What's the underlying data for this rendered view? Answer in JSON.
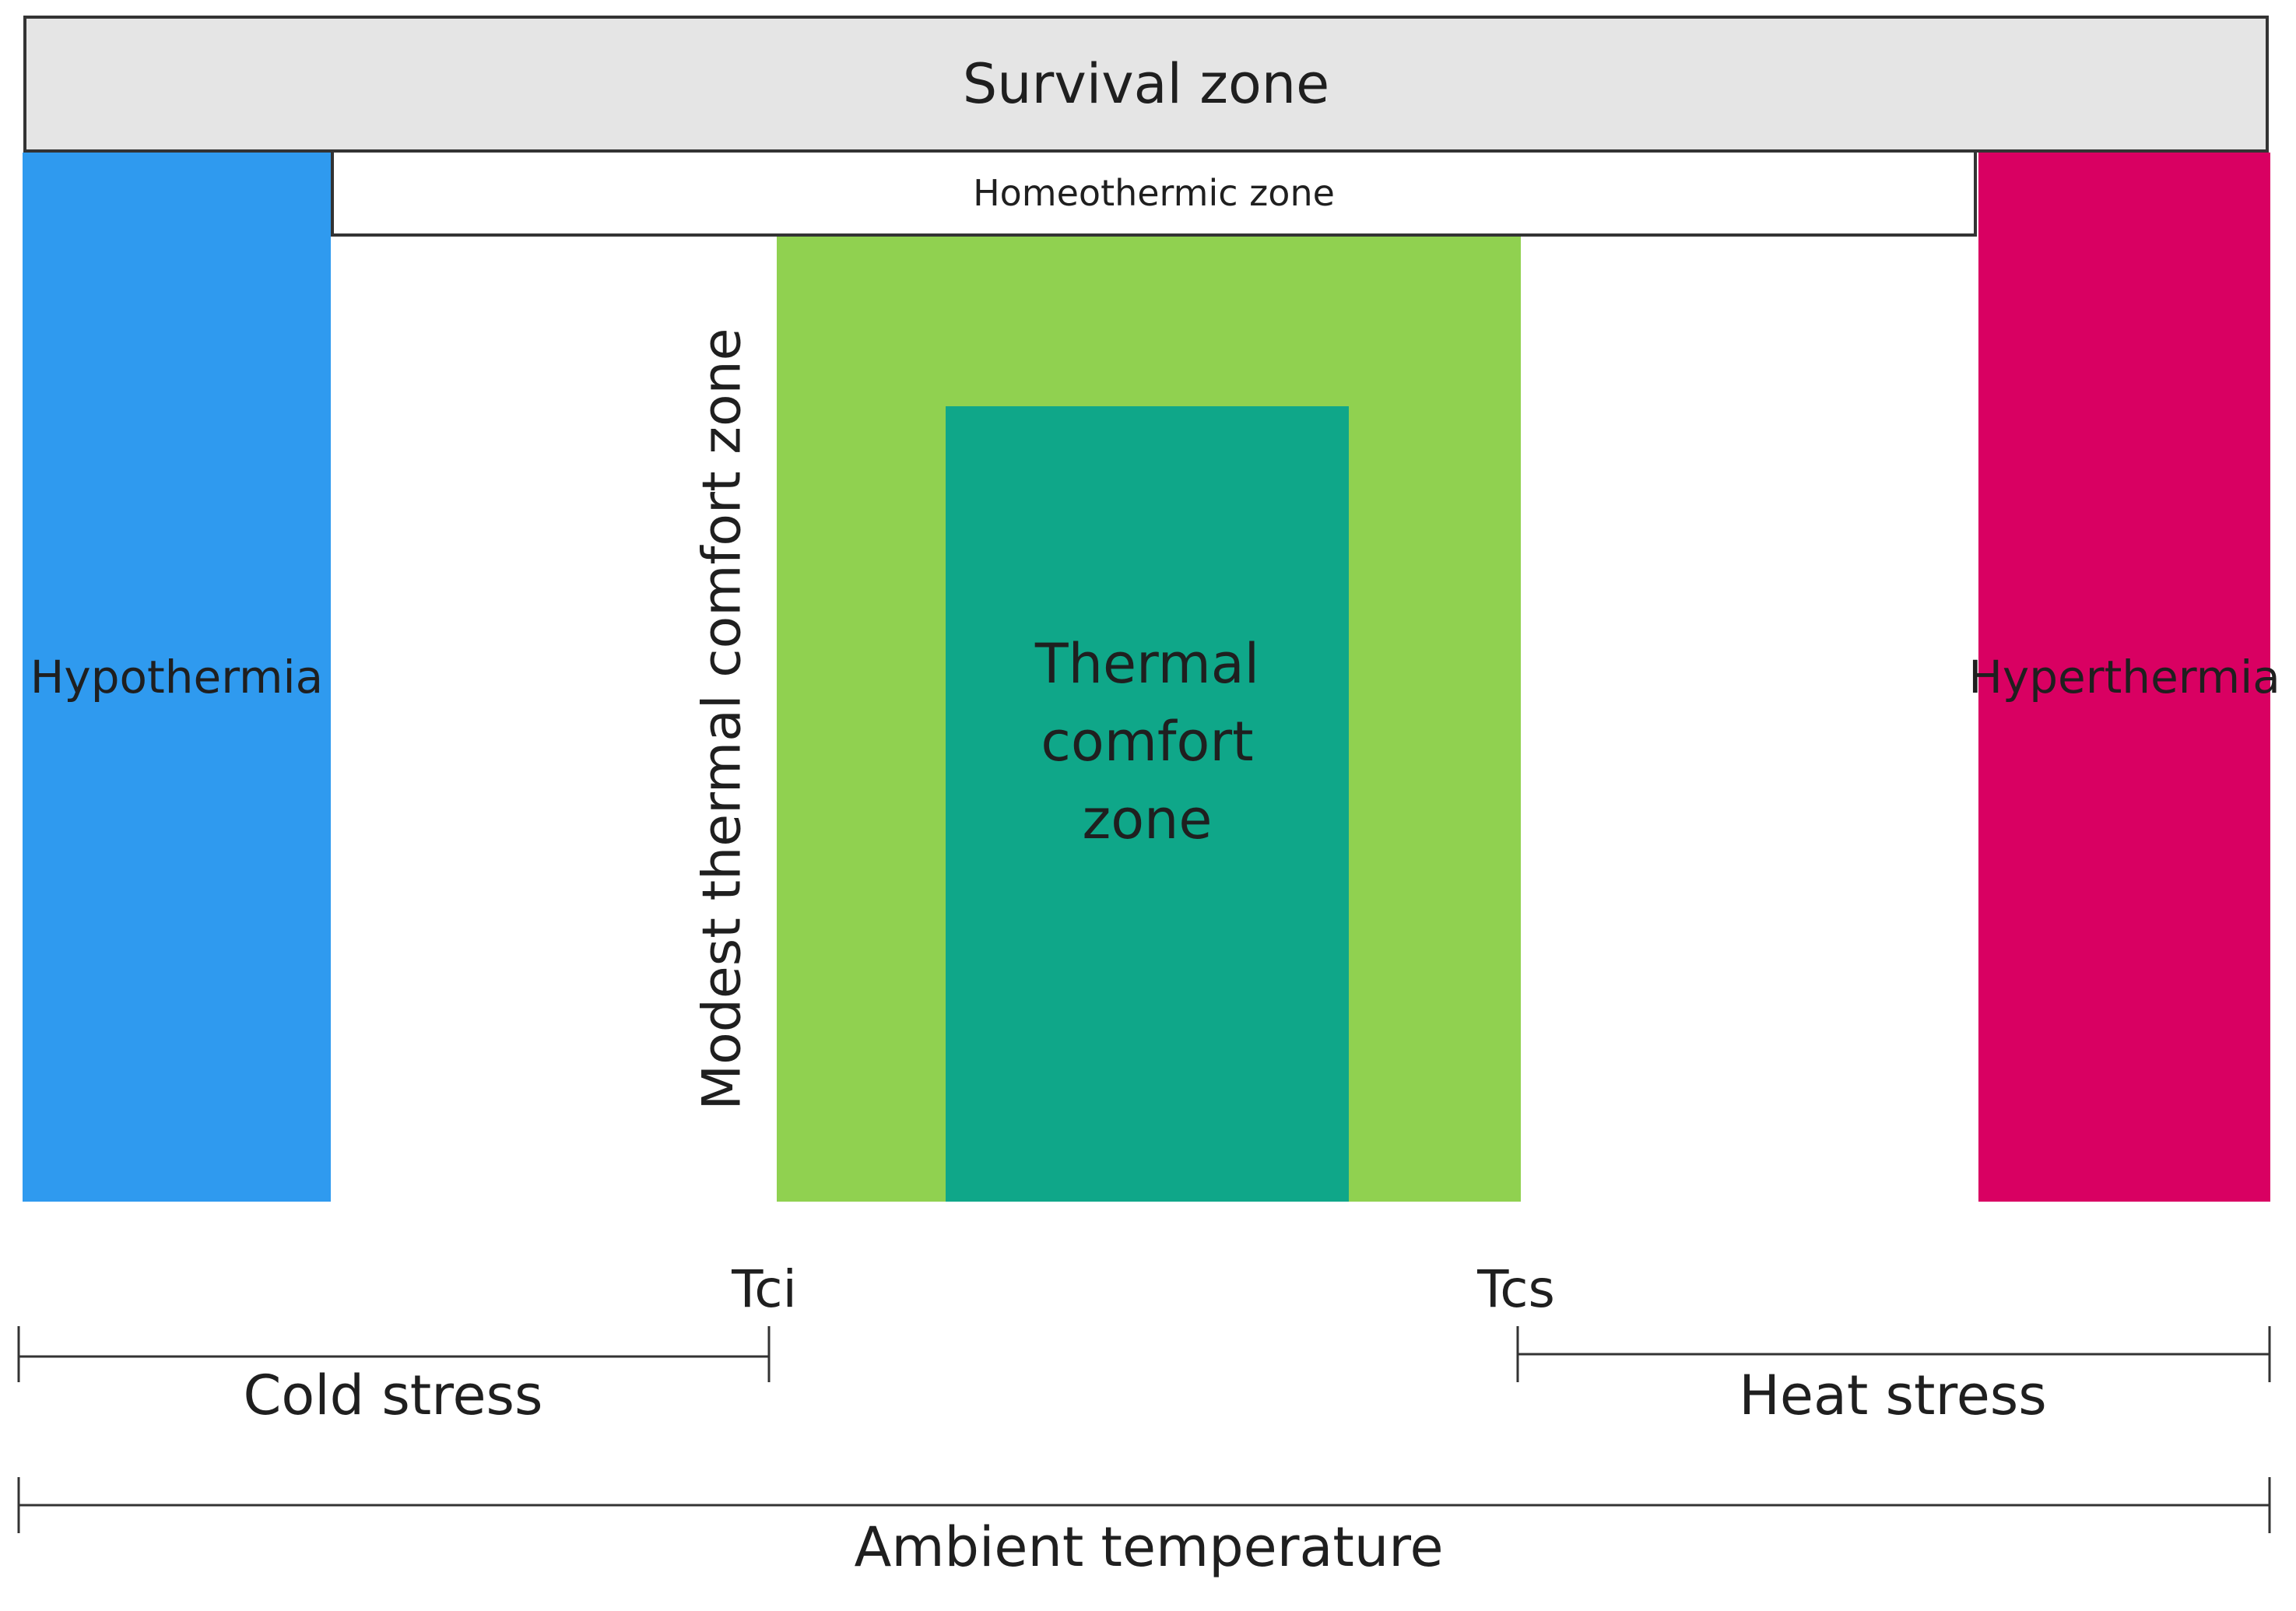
{
  "diagram": {
    "survival_zone": "Survival zone",
    "homeothermic_zone": "Homeothermic zone",
    "hypothermia": "Hypothermia",
    "hyperthermia": "Hyperthermia",
    "modest_thermal_comfort_zone": "Modest thermal comfort zone",
    "thermal_comfort_zone": "Thermal comfort zone",
    "tci": "Tci",
    "tcs": "Tcs",
    "cold_stress": "Cold stress",
    "heat_stress": "Heat stress",
    "ambient_temperature": "Ambient temperature"
  },
  "colors": {
    "survival_fill": "#e5e5e5",
    "hypothermia": "#2f9aef",
    "hyperthermia": "#d90062",
    "modest_comfort": "#90d150",
    "comfort": "#0fa789",
    "lines": "#333333"
  }
}
